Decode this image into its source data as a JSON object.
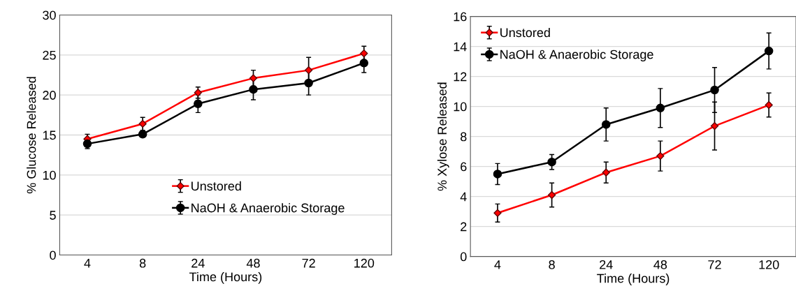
{
  "chart_data": [
    {
      "type": "line",
      "xlabel": "Time (Hours)",
      "ylabel": "% Glucose Released",
      "categories": [
        "4",
        "8",
        "24",
        "48",
        "72",
        "120"
      ],
      "ylim": [
        0,
        30
      ],
      "yticks": [
        0,
        5,
        10,
        15,
        20,
        25,
        30
      ],
      "grid": "y",
      "legend": "bottom",
      "series": [
        {
          "name": "Unstored",
          "color": "#ff0000",
          "marker": "diamond",
          "values": [
            14.5,
            16.4,
            20.3,
            22.1,
            23.1,
            25.2
          ],
          "errors": [
            0.6,
            0.8,
            0.7,
            1.0,
            1.6,
            0.9
          ]
        },
        {
          "name": "NaOH & Anaerobic Storage",
          "color": "#000000",
          "marker": "circle",
          "values": [
            13.9,
            15.1,
            18.9,
            20.7,
            21.5,
            24.0
          ],
          "errors": [
            0.6,
            0.3,
            1.1,
            1.3,
            1.5,
            1.2
          ]
        }
      ]
    },
    {
      "type": "line",
      "xlabel": "Time (Hours)",
      "ylabel": "% Xylose Released",
      "categories": [
        "4",
        "8",
        "24",
        "48",
        "72",
        "120"
      ],
      "ylim": [
        0,
        16
      ],
      "yticks": [
        0,
        2,
        4,
        6,
        8,
        10,
        12,
        14,
        16
      ],
      "grid": "y",
      "legend": "top left",
      "series": [
        {
          "name": "Unstored",
          "color": "#ff0000",
          "marker": "diamond",
          "values": [
            2.9,
            4.1,
            5.6,
            6.7,
            8.7,
            10.1
          ],
          "errors": [
            0.6,
            0.8,
            0.7,
            1.0,
            1.6,
            0.8
          ]
        },
        {
          "name": "NaOH & Anaerobic Storage",
          "color": "#000000",
          "marker": "circle",
          "values": [
            5.5,
            6.3,
            8.8,
            9.9,
            11.1,
            13.7
          ],
          "errors": [
            0.7,
            0.5,
            1.1,
            1.3,
            1.5,
            1.2
          ]
        }
      ]
    }
  ]
}
